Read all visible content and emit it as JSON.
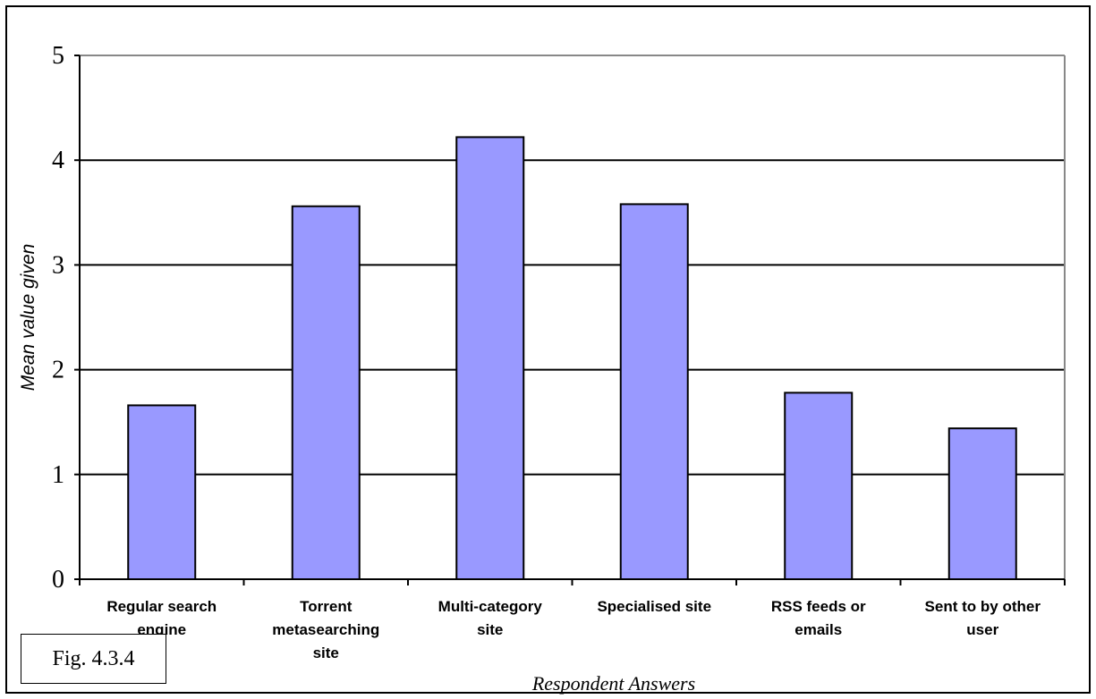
{
  "figure_label": "Fig. 4.3.4",
  "chart_data": {
    "type": "bar",
    "categories": [
      [
        "Regular search",
        "engine"
      ],
      [
        "Torrent",
        "metasearching",
        "site"
      ],
      [
        "Multi-category",
        "site"
      ],
      [
        "Specialised site"
      ],
      [
        "RSS feeds or",
        "emails"
      ],
      [
        "Sent to by other",
        "user"
      ]
    ],
    "values": [
      1.66,
      3.56,
      4.22,
      3.58,
      1.78,
      1.44
    ],
    "ylabel": "Mean value given",
    "xlabel": "Respondent Answers",
    "ylim": [
      0,
      5
    ],
    "yticks": [
      0,
      1,
      2,
      3,
      4,
      5
    ],
    "grid": true,
    "bar_color": "#9999ff"
  }
}
